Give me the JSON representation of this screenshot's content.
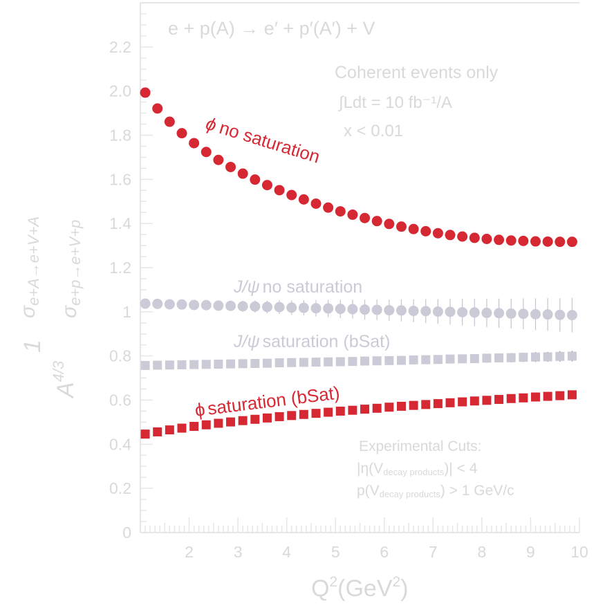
{
  "chart_data": {
    "type": "scatter",
    "title": "",
    "process_label": "e + p(A) → e′ + p′(A′) + V",
    "annotations": {
      "line1": "Coherent events only",
      "line2": "∫Ldt = 10 fb⁻¹/A",
      "line3": "x < 0.01",
      "cuts_title": "Experimental Cuts:",
      "cut1_main": "|η(V",
      "cut1_sub": "decay products",
      "cut1_tail": ")| < 4",
      "cut2_main": "p(V",
      "cut2_sub": "decay products",
      "cut2_tail": ") > 1 GeV/c"
    },
    "xlabel": {
      "main": "Q",
      "sup1": "2",
      "mid": "(GeV",
      "sup2": "2",
      "end": ")"
    },
    "ylabel": {
      "num": "1",
      "den_base": "A",
      "den_sup": "4/3",
      "top_sigma": "σ",
      "top_sub": "e+A→e+V+A",
      "bottom_sigma": "σ",
      "bottom_sub": "e+p→e+V+p"
    },
    "xlim": [
      1,
      10
    ],
    "ylim": [
      0,
      2.4
    ],
    "xticks": [
      "2",
      "3",
      "4",
      "5",
      "6",
      "7",
      "8",
      "9",
      "10"
    ],
    "yticks": [
      "0",
      "0.2",
      "0.4",
      "0.6",
      "0.8",
      "1",
      "1.2",
      "1.4",
      "1.6",
      "1.8",
      "2.0",
      "2.2"
    ],
    "grid": false,
    "x": [
      1.1,
      1.35,
      1.6,
      1.85,
      2.1,
      2.35,
      2.6,
      2.85,
      3.1,
      3.35,
      3.6,
      3.85,
      4.1,
      4.35,
      4.6,
      4.85,
      5.1,
      5.35,
      5.6,
      5.85,
      6.1,
      6.35,
      6.6,
      6.85,
      7.1,
      7.35,
      7.6,
      7.85,
      8.1,
      8.35,
      8.6,
      8.85,
      9.1,
      9.35,
      9.6,
      9.85
    ],
    "series": [
      {
        "name": "ϕ no saturation",
        "label_parts": [
          "ϕ",
          "no saturation"
        ],
        "color": "#d62833",
        "marker": "circle",
        "values": [
          1.993,
          1.921,
          1.861,
          1.809,
          1.764,
          1.724,
          1.688,
          1.656,
          1.626,
          1.599,
          1.574,
          1.551,
          1.529,
          1.509,
          1.49,
          1.472,
          1.455,
          1.44,
          1.425,
          1.411,
          1.398,
          1.386,
          1.375,
          1.365,
          1.356,
          1.348,
          1.341,
          1.335,
          1.33,
          1.326,
          1.323,
          1.321,
          1.319,
          1.318,
          1.317,
          1.317
        ],
        "errors": [
          0.004,
          0.004,
          0.004,
          0.004,
          0.004,
          0.004,
          0.004,
          0.004,
          0.004,
          0.004,
          0.004,
          0.004,
          0.004,
          0.004,
          0.004,
          0.004,
          0.004,
          0.004,
          0.004,
          0.004,
          0.004,
          0.004,
          0.004,
          0.004,
          0.004,
          0.004,
          0.004,
          0.004,
          0.004,
          0.004,
          0.004,
          0.004,
          0.004,
          0.004,
          0.004,
          0.004
        ]
      },
      {
        "name": "J/ψ no saturation",
        "label_parts": [
          "J/ψ",
          "no saturation"
        ],
        "color": "#cbcbd8",
        "marker": "circle",
        "values": [
          1.037,
          1.036,
          1.034,
          1.033,
          1.031,
          1.03,
          1.028,
          1.027,
          1.025,
          1.024,
          1.022,
          1.021,
          1.019,
          1.018,
          1.016,
          1.015,
          1.013,
          1.012,
          1.01,
          1.009,
          1.007,
          1.006,
          1.004,
          1.003,
          1.001,
          1.0,
          0.998,
          0.997,
          0.995,
          0.994,
          0.992,
          0.991,
          0.989,
          0.988,
          0.986,
          0.985
        ],
        "errors": [
          0.01,
          0.012,
          0.014,
          0.015,
          0.017,
          0.019,
          0.021,
          0.023,
          0.025,
          0.027,
          0.029,
          0.031,
          0.033,
          0.035,
          0.037,
          0.039,
          0.041,
          0.043,
          0.045,
          0.046,
          0.048,
          0.05,
          0.052,
          0.054,
          0.056,
          0.058,
          0.06,
          0.062,
          0.064,
          0.066,
          0.068,
          0.07,
          0.072,
          0.074,
          0.076,
          0.078
        ]
      },
      {
        "name": "J/ψ saturation (bSat)",
        "label_parts": [
          "J/ψ",
          "saturation (bSat)"
        ],
        "color": "#cbcbd8",
        "marker": "square",
        "values": [
          0.757,
          0.758,
          0.759,
          0.76,
          0.761,
          0.762,
          0.763,
          0.764,
          0.765,
          0.766,
          0.767,
          0.769,
          0.77,
          0.771,
          0.772,
          0.773,
          0.774,
          0.775,
          0.777,
          0.778,
          0.779,
          0.78,
          0.782,
          0.783,
          0.784,
          0.786,
          0.787,
          0.788,
          0.79,
          0.791,
          0.792,
          0.794,
          0.795,
          0.796,
          0.798,
          0.799
        ],
        "errors": [
          0.006,
          0.006,
          0.007,
          0.007,
          0.008,
          0.008,
          0.009,
          0.009,
          0.01,
          0.01,
          0.011,
          0.011,
          0.012,
          0.012,
          0.013,
          0.013,
          0.014,
          0.014,
          0.015,
          0.015,
          0.016,
          0.016,
          0.017,
          0.017,
          0.018,
          0.018,
          0.019,
          0.019,
          0.02,
          0.02,
          0.021,
          0.021,
          0.022,
          0.022,
          0.023,
          0.023
        ]
      },
      {
        "name": "ϕ saturation (bSat)",
        "label_parts": [
          "ϕ",
          "saturation (bSat)"
        ],
        "color": "#d62833",
        "marker": "square",
        "values": [
          0.446,
          0.456,
          0.465,
          0.473,
          0.481,
          0.488,
          0.495,
          0.501,
          0.507,
          0.513,
          0.519,
          0.525,
          0.53,
          0.535,
          0.54,
          0.545,
          0.55,
          0.554,
          0.559,
          0.563,
          0.568,
          0.572,
          0.576,
          0.58,
          0.584,
          0.588,
          0.592,
          0.596,
          0.599,
          0.603,
          0.607,
          0.61,
          0.614,
          0.617,
          0.62,
          0.624
        ],
        "errors": [
          0.003,
          0.003,
          0.003,
          0.003,
          0.003,
          0.003,
          0.003,
          0.003,
          0.003,
          0.003,
          0.003,
          0.003,
          0.003,
          0.003,
          0.003,
          0.003,
          0.003,
          0.003,
          0.003,
          0.003,
          0.003,
          0.003,
          0.003,
          0.003,
          0.003,
          0.003,
          0.003,
          0.003,
          0.003,
          0.003,
          0.003,
          0.003,
          0.003,
          0.003,
          0.003,
          0.003
        ]
      }
    ]
  }
}
